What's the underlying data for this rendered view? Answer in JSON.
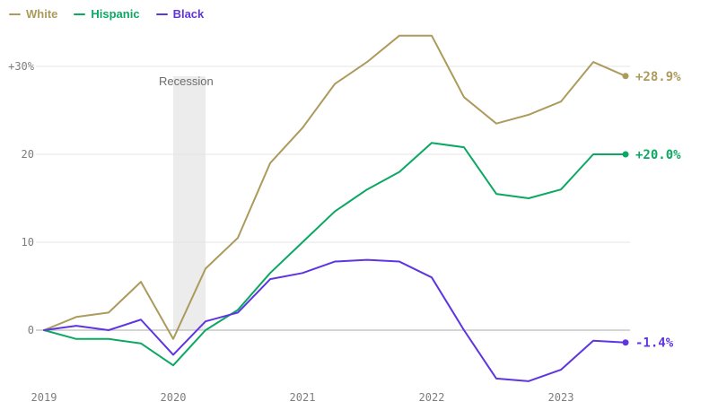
{
  "chart_data": {
    "type": "line",
    "x": [
      2019.0,
      2019.25,
      2019.5,
      2019.75,
      2020.0,
      2020.25,
      2020.5,
      2020.75,
      2021.0,
      2021.25,
      2021.5,
      2021.75,
      2022.0,
      2022.25,
      2022.5,
      2022.75,
      2023.0,
      2023.25,
      2023.5
    ],
    "xticks": [
      {
        "value": 2019,
        "label": "2019"
      },
      {
        "value": 2020,
        "label": "2020"
      },
      {
        "value": 2021,
        "label": "2021"
      },
      {
        "value": 2022,
        "label": "2022"
      },
      {
        "value": 2023,
        "label": "2023"
      }
    ],
    "yticks": [
      {
        "value": 0,
        "label": "0"
      },
      {
        "value": 10,
        "label": "10"
      },
      {
        "value": 20,
        "label": "20"
      },
      {
        "value": 30,
        "label": "+30%"
      }
    ],
    "ylim": [
      -7,
      35
    ],
    "xlim": [
      2019,
      2023.6
    ],
    "grid": "horizontal",
    "legend_position": "top-left",
    "series": [
      {
        "name": "White",
        "color": "#ac9b5d",
        "end_label": "+28.9%",
        "values": [
          0,
          1.5,
          2,
          5.5,
          -1,
          7,
          10.5,
          19,
          23,
          28,
          30.5,
          33.5,
          33.5,
          26.5,
          23.5,
          24.5,
          26,
          30.5,
          28.9
        ]
      },
      {
        "name": "Hispanic",
        "color": "#0ba863",
        "end_label": "+20.0%",
        "values": [
          0,
          -1,
          -1,
          -1.5,
          -4,
          0,
          2.3,
          6.5,
          10,
          13.5,
          16,
          18,
          21.3,
          20.8,
          15.5,
          15,
          16,
          20,
          20.0
        ]
      },
      {
        "name": "Black",
        "color": "#5e35e0",
        "end_label": "-1.4%",
        "values": [
          0,
          0.5,
          0,
          1.2,
          -2.8,
          1,
          2,
          5.8,
          6.5,
          7.8,
          8,
          7.8,
          6,
          0,
          -5.5,
          -5.8,
          -4.5,
          -1.2,
          -1.4
        ]
      }
    ],
    "annotations": [
      {
        "type": "band",
        "label": "Recession",
        "x_start": 2020.0,
        "x_end": 2020.25
      }
    ],
    "colors": {
      "grid": "#e4e4e4",
      "zero_line": "#ababab",
      "axis_text": "#7d7d7d",
      "band_fill": "#ececec",
      "annotation_text": "#6d6d6d"
    }
  }
}
